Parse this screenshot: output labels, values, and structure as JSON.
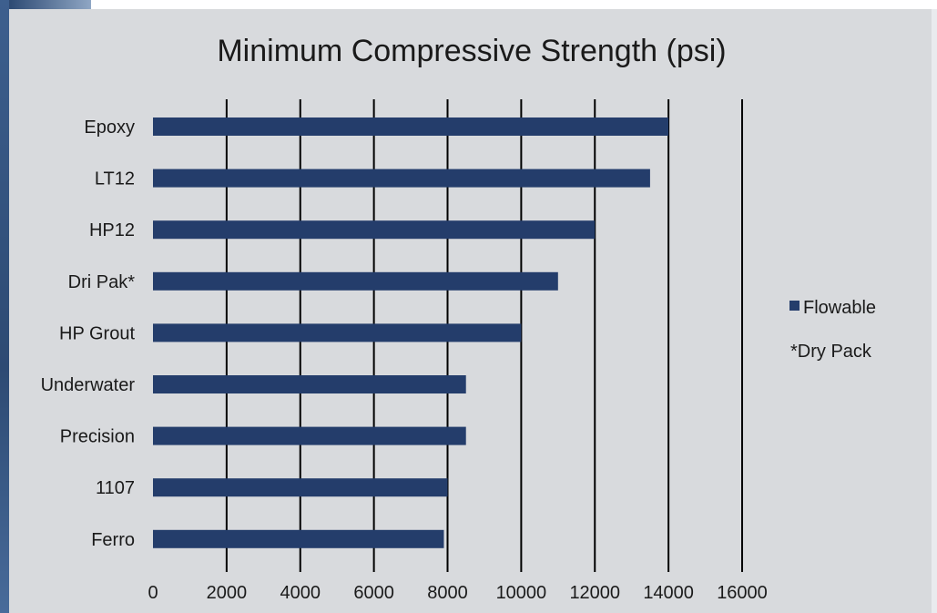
{
  "chart_data": {
    "type": "bar",
    "orientation": "horizontal",
    "title": "Minimum Compressive Strength (psi)",
    "xlabel": "",
    "ylabel": "",
    "categories": [
      "Epoxy",
      "LT12",
      "HP12",
      "Dri Pak*",
      "HP Grout",
      "Underwater",
      "Precision",
      "1107",
      "Ferro"
    ],
    "series": [
      {
        "name": "Flowable",
        "values": [
          14000,
          13500,
          12000,
          11000,
          10000,
          8500,
          8500,
          8000,
          7900
        ]
      }
    ],
    "xlim": [
      0,
      16000
    ],
    "ticks": [
      "0",
      "2000",
      "4000",
      "6000",
      "8000",
      "10000",
      "12000",
      "14000",
      "16000"
    ],
    "tick_values": [
      0,
      2000,
      4000,
      6000,
      8000,
      10000,
      12000,
      14000,
      16000
    ],
    "grid": true,
    "legend_placement": "right",
    "legend_note": "*Dry Pack",
    "bar_color": "#243d6b",
    "grid_color": "#000000",
    "background_color": "#d8dadd"
  }
}
